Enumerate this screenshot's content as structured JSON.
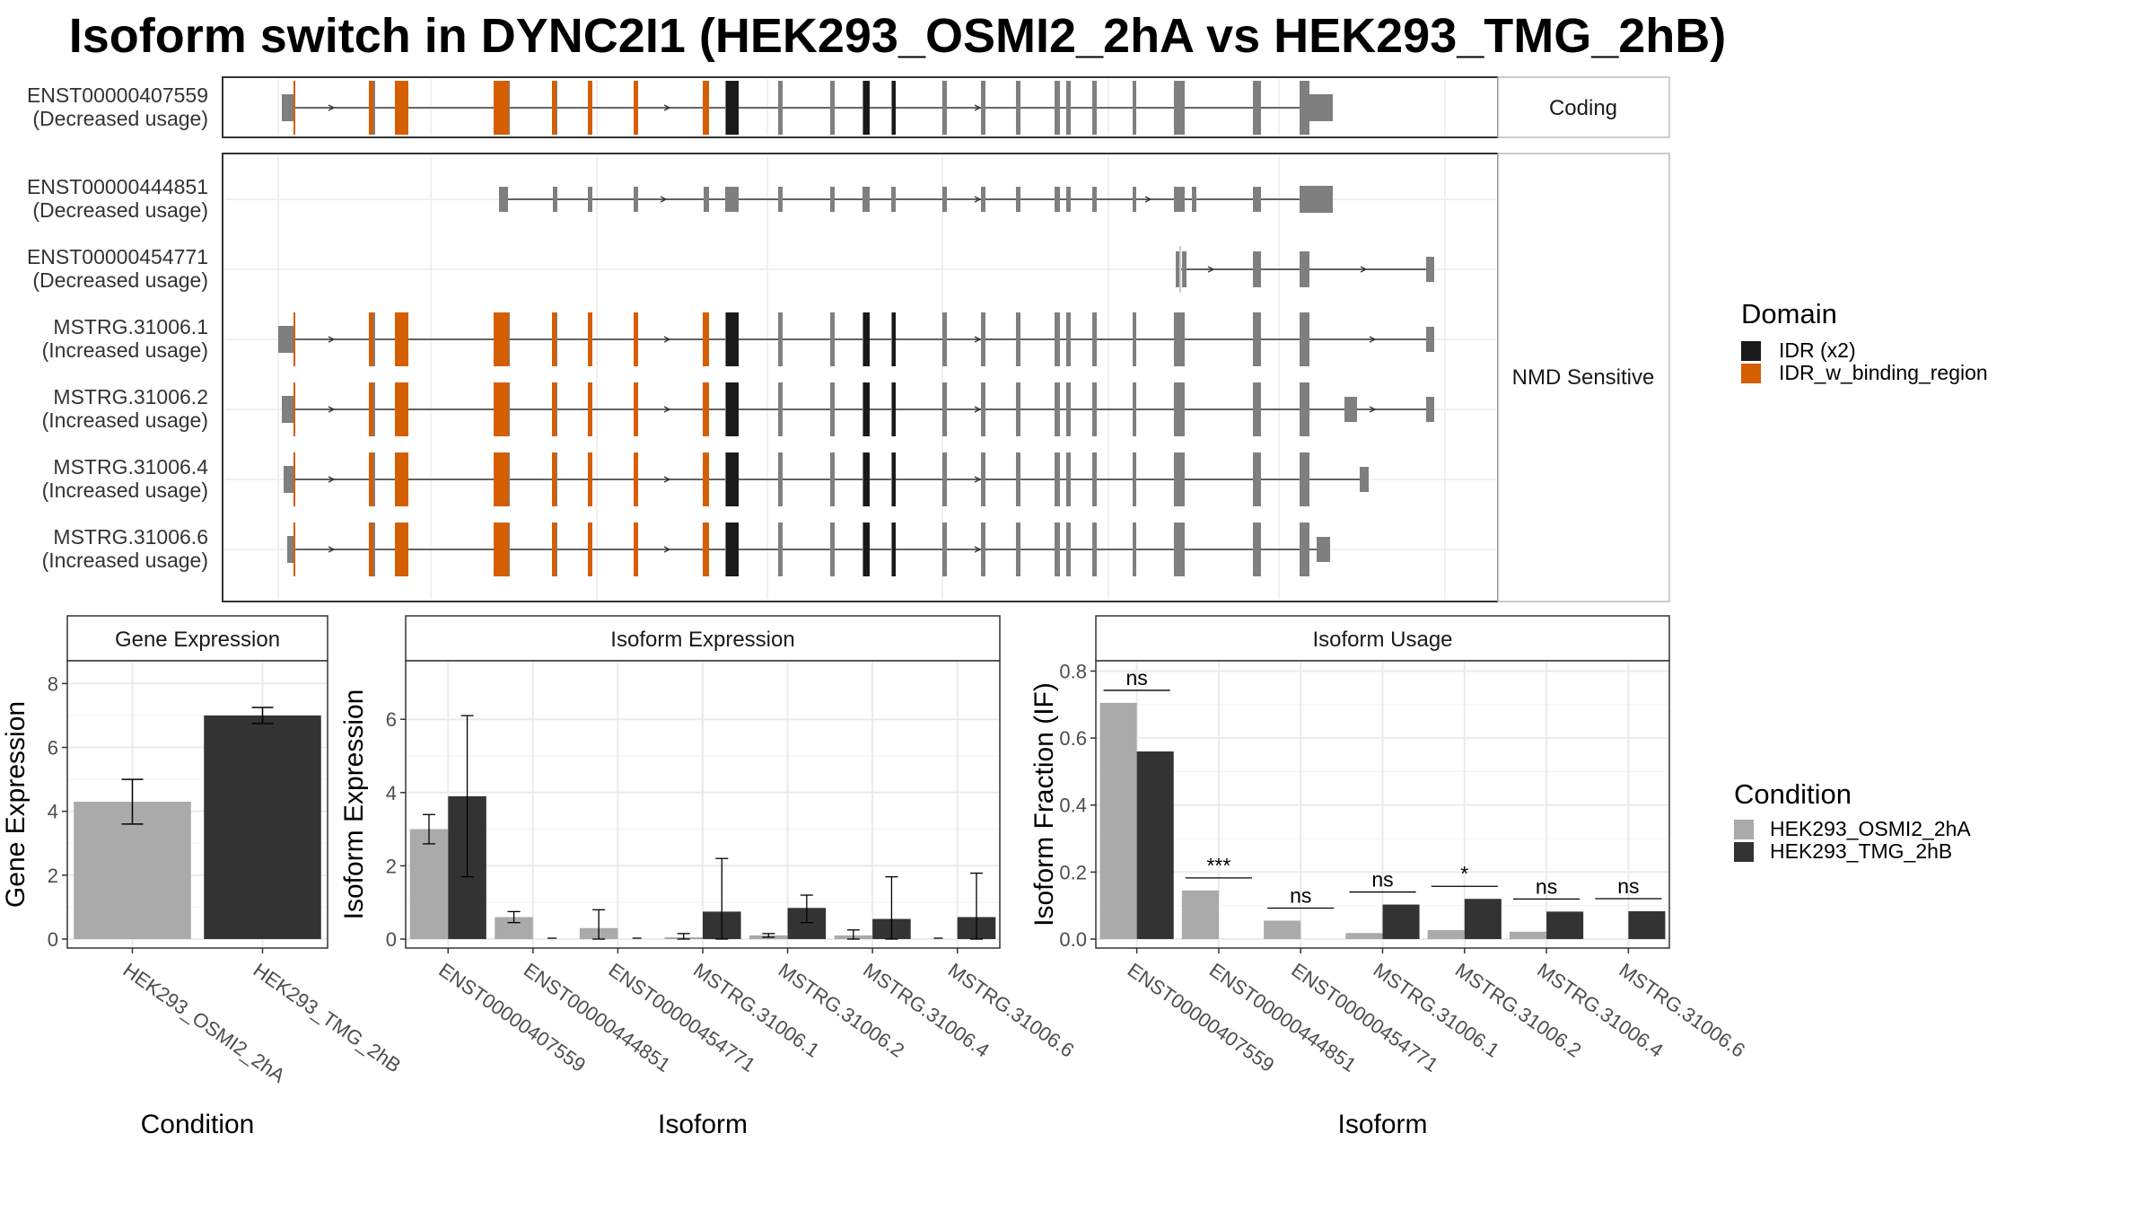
{
  "title": "Isoform switch in DYNC2I1 (HEK293_OSMI2_2hA vs HEK293_TMG_2hB)",
  "colors": {
    "exon": "#7f7f7f",
    "idr": "#1a1a1a",
    "idr_binding": "#d55e00",
    "cond1": "#aaaaaa",
    "cond2": "#333333"
  },
  "chart_data": [
    {
      "type": "gene-structure",
      "transcripts": [
        {
          "id": "ENST00000407559",
          "usage": "(Decreased usage)",
          "group": "Coding"
        },
        {
          "id": "ENST00000444851",
          "usage": "(Decreased usage)",
          "group": "NMD Sensitive"
        },
        {
          "id": "ENST00000454771",
          "usage": "(Decreased usage)",
          "group": "NMD Sensitive"
        },
        {
          "id": "MSTRG.31006.1",
          "usage": "(Increased usage)",
          "group": "NMD Sensitive"
        },
        {
          "id": "MSTRG.31006.2",
          "usage": "(Increased usage)",
          "group": "NMD Sensitive"
        },
        {
          "id": "MSTRG.31006.4",
          "usage": "(Increased usage)",
          "group": "NMD Sensitive"
        },
        {
          "id": "MSTRG.31006.6",
          "usage": "(Increased usage)",
          "group": "NMD Sensitive"
        }
      ],
      "groups": [
        "Coding",
        "NMD Sensitive"
      ],
      "legend": {
        "title": "Domain",
        "items": [
          {
            "label": "IDR (x2)",
            "color": "#1a1a1a"
          },
          {
            "label": "IDR_w_binding_region",
            "color": "#d55e00"
          }
        ]
      }
    },
    {
      "type": "bar",
      "panel": "Gene Expression",
      "xlabel": "Condition",
      "ylabel": "Gene Expression",
      "categories": [
        "HEK293_OSMI2_2hA",
        "HEK293_TMG_2hB"
      ],
      "values": [
        4.3,
        7.0
      ],
      "error": [
        [
          3.6,
          5.0
        ],
        [
          6.75,
          7.25
        ]
      ],
      "ylim": [
        0,
        8.6
      ],
      "yticks": [
        0,
        2,
        4,
        6,
        8
      ]
    },
    {
      "type": "bar",
      "panel": "Isoform Expression",
      "xlabel": "Isoform",
      "ylabel": "Isoform Expression",
      "categories": [
        "ENST00000407559",
        "ENST00000444851",
        "ENST00000454771",
        "MSTRG.31006.1",
        "MSTRG.31006.2",
        "MSTRG.31006.4",
        "MSTRG.31006.6"
      ],
      "series": [
        {
          "name": "HEK293_OSMI2_2hA",
          "values": [
            3.0,
            0.6,
            0.3,
            0.05,
            0.1,
            0.1,
            0.0
          ],
          "error": [
            [
              2.6,
              3.4
            ],
            [
              0.45,
              0.75
            ],
            [
              0.0,
              0.8
            ],
            [
              0.0,
              0.15
            ],
            [
              0.05,
              0.15
            ],
            [
              0.0,
              0.25
            ],
            [
              0.0,
              0.0
            ]
          ]
        },
        {
          "name": "HEK293_TMG_2hB",
          "values": [
            3.9,
            0.0,
            0.0,
            0.75,
            0.85,
            0.55,
            0.6
          ],
          "error": [
            [
              1.7,
              6.1
            ],
            [
              0.0,
              0.0
            ],
            [
              0.0,
              0.0
            ],
            [
              0.0,
              2.2
            ],
            [
              0.45,
              1.2
            ],
            [
              0.0,
              1.7
            ],
            [
              0.0,
              1.8
            ]
          ]
        }
      ],
      "ylim": [
        0,
        7.5
      ],
      "yticks": [
        0,
        2,
        4,
        6
      ]
    },
    {
      "type": "bar",
      "panel": "Isoform Usage",
      "xlabel": "Isoform",
      "ylabel": "Isoform Fraction (IF)",
      "categories": [
        "ENST00000407559",
        "ENST00000444851",
        "ENST00000454771",
        "MSTRG.31006.1",
        "MSTRG.31006.2",
        "MSTRG.31006.4",
        "MSTRG.31006.6"
      ],
      "series": [
        {
          "name": "HEK293_OSMI2_2hA",
          "values": [
            0.705,
            0.145,
            0.055,
            0.018,
            0.027,
            0.022,
            0.0
          ]
        },
        {
          "name": "HEK293_TMG_2hB",
          "values": [
            0.56,
            0.0,
            0.0,
            0.103,
            0.12,
            0.082,
            0.083
          ]
        }
      ],
      "significance": [
        "ns",
        "***",
        "ns",
        "ns",
        "*",
        "ns",
        "ns"
      ],
      "ylim": [
        0,
        0.82
      ],
      "yticks": [
        0.0,
        0.2,
        0.4,
        0.6,
        0.8
      ],
      "ytick_labels": [
        "0.0",
        "0.2",
        "0.4",
        "0.6",
        "0.8"
      ]
    }
  ],
  "condition_legend": {
    "title": "Condition",
    "items": [
      {
        "label": "HEK293_OSMI2_2hA",
        "color": "#aaaaaa"
      },
      {
        "label": "HEK293_TMG_2hB",
        "color": "#333333"
      }
    ]
  }
}
